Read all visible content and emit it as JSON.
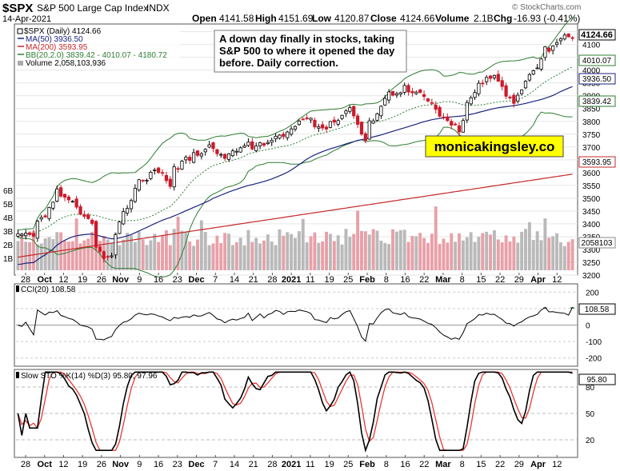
{
  "header": {
    "symbol": "$SPX",
    "name": "S&P 500 Large Cap Index",
    "exchange": "INDX",
    "date": "14-Apr-2021",
    "open_label": "Open",
    "open": "4141.58",
    "high_label": "High",
    "high": "4151.69",
    "low_label": "Low",
    "low": "4120.87",
    "close_label": "Close",
    "close": "4124.66",
    "volume_label": "Volume",
    "volume": "2.1B",
    "chg_label": "Chg",
    "chg": "-16.93 (-0.41%)",
    "watermark": "© StockCharts.com"
  },
  "legend": {
    "price": "$SPX (Daily) 4124.66",
    "ma50": "MA(50) 3936.50",
    "ma200": "MA(200) 3593.95",
    "bb": "BB(20,2.0) 3839.42 - 4010.07 - 4180.72",
    "volume": "Volume 2,058,103,936"
  },
  "annotation": {
    "text_lines": [
      "A down day finally in stocks, taking",
      "S&P 500 to where it opened the day",
      "before. Daily correction."
    ],
    "brand": "monicakingsley.co"
  },
  "price_labels": {
    "last": "4124.66",
    "bb_mid": "4010.07",
    "ma50": "3936.50",
    "bb_low": "3839.42",
    "ma200": "3593.95",
    "volume": "2058103"
  },
  "cci_panel": {
    "label": "CCI(20) 108.58",
    "last": "108.58",
    "ticks": [
      "200",
      "100",
      "0",
      "-100",
      "-200"
    ]
  },
  "sto_panel": {
    "label": "Slow STO %K(14) %D(3) 95.80, 97.96",
    "last": "95.80",
    "ticks": [
      "80",
      "50",
      "20"
    ]
  },
  "volume_ticks": [
    "6B",
    "5B",
    "4B",
    "3B",
    "2B",
    "1B"
  ],
  "x_axis": {
    "labels": [
      {
        "t": "28",
        "b": false
      },
      {
        "t": "Oct",
        "b": true
      },
      {
        "t": "12",
        "b": false
      },
      {
        "t": "19",
        "b": false
      },
      {
        "t": "26",
        "b": false
      },
      {
        "t": "Nov",
        "b": true
      },
      {
        "t": "9",
        "b": false
      },
      {
        "t": "16",
        "b": false
      },
      {
        "t": "23",
        "b": false
      },
      {
        "t": "Dec",
        "b": true
      },
      {
        "t": "7",
        "b": false
      },
      {
        "t": "14",
        "b": false
      },
      {
        "t": "21",
        "b": false
      },
      {
        "t": "28",
        "b": false
      },
      {
        "t": "2021",
        "b": true
      },
      {
        "t": "11",
        "b": false
      },
      {
        "t": "19",
        "b": false
      },
      {
        "t": "25",
        "b": false
      },
      {
        "t": "Feb",
        "b": true
      },
      {
        "t": "8",
        "b": false
      },
      {
        "t": "16",
        "b": false
      },
      {
        "t": "22",
        "b": false
      },
      {
        "t": "Mar",
        "b": true
      },
      {
        "t": "8",
        "b": false
      },
      {
        "t": "15",
        "b": false
      },
      {
        "t": "22",
        "b": false
      },
      {
        "t": "29",
        "b": false
      },
      {
        "t": "Apr",
        "b": true
      },
      {
        "t": "12",
        "b": false
      }
    ]
  },
  "colors": {
    "up": "#ffffff",
    "down": "#cc1a2a",
    "bb": "#2e7d32",
    "ma50": "#1a237e",
    "ma200": "#c62828",
    "vol_up": "#b9b9b9",
    "vol_down": "#e8a0a8",
    "cci_fill_pos": "#5f8a5f",
    "cci_fill_neg": "#9e5a5a",
    "sto_k": "#000000",
    "sto_d": "#e53935",
    "brand_bg": "#ffff00"
  },
  "chart_data": {
    "type": "candlestick",
    "title": "$SPX S&P 500 Large Cap Index INDX",
    "period": "daily",
    "date_range": [
      "2020-09-28",
      "2021-04-14"
    ],
    "y_range": [
      3200,
      4180
    ],
    "y_ticks": [
      3200,
      3250,
      3300,
      3350,
      3400,
      3450,
      3500,
      3550,
      3600,
      3650,
      3700,
      3750,
      3800,
      3850,
      3900,
      3950,
      4000,
      4050,
      4100,
      4150
    ],
    "close_anchors": [
      [
        "2020-09-28",
        3350
      ],
      [
        "2020-10-02",
        3350
      ],
      [
        "2020-10-12",
        3530
      ],
      [
        "2020-10-15",
        3480
      ],
      [
        "2020-10-21",
        3440
      ],
      [
        "2020-10-28",
        3270
      ],
      [
        "2020-10-30",
        3270
      ],
      [
        "2020-11-04",
        3440
      ],
      [
        "2020-11-09",
        3550
      ],
      [
        "2020-11-16",
        3620
      ],
      [
        "2020-11-20",
        3560
      ],
      [
        "2020-11-25",
        3640
      ],
      [
        "2020-12-04",
        3700
      ],
      [
        "2020-12-11",
        3660
      ],
      [
        "2020-12-18",
        3710
      ],
      [
        "2020-12-21",
        3690
      ],
      [
        "2020-12-31",
        3750
      ],
      [
        "2021-01-08",
        3820
      ],
      [
        "2021-01-15",
        3770
      ],
      [
        "2021-01-25",
        3860
      ],
      [
        "2021-01-29",
        3715
      ],
      [
        "2021-02-05",
        3890
      ],
      [
        "2021-02-12",
        3930
      ],
      [
        "2021-02-22",
        3880
      ],
      [
        "2021-02-26",
        3810
      ],
      [
        "2021-03-04",
        3770
      ],
      [
        "2021-03-11",
        3940
      ],
      [
        "2021-03-17",
        3975
      ],
      [
        "2021-03-24",
        3880
      ],
      [
        "2021-03-29",
        3970
      ],
      [
        "2021-04-05",
        4080
      ],
      [
        "2021-04-13",
        4141
      ],
      [
        "2021-04-14",
        4124.66
      ]
    ],
    "series": [
      {
        "name": "MA(50)",
        "last": 3936.5
      },
      {
        "name": "MA(200)",
        "last": 3593.95
      },
      {
        "name": "BB(20,2.0)",
        "lower": 3839.42,
        "middle": 4010.07,
        "upper": 4180.72
      },
      {
        "name": "Volume",
        "last": 2058103936
      },
      {
        "name": "CCI(20)",
        "last": 108.58
      },
      {
        "name": "Slow STO %K(14)",
        "last": 95.8
      },
      {
        "name": "Slow STO %D(3)",
        "last": 97.96
      }
    ],
    "grid": true,
    "legend_position": "top-left"
  }
}
